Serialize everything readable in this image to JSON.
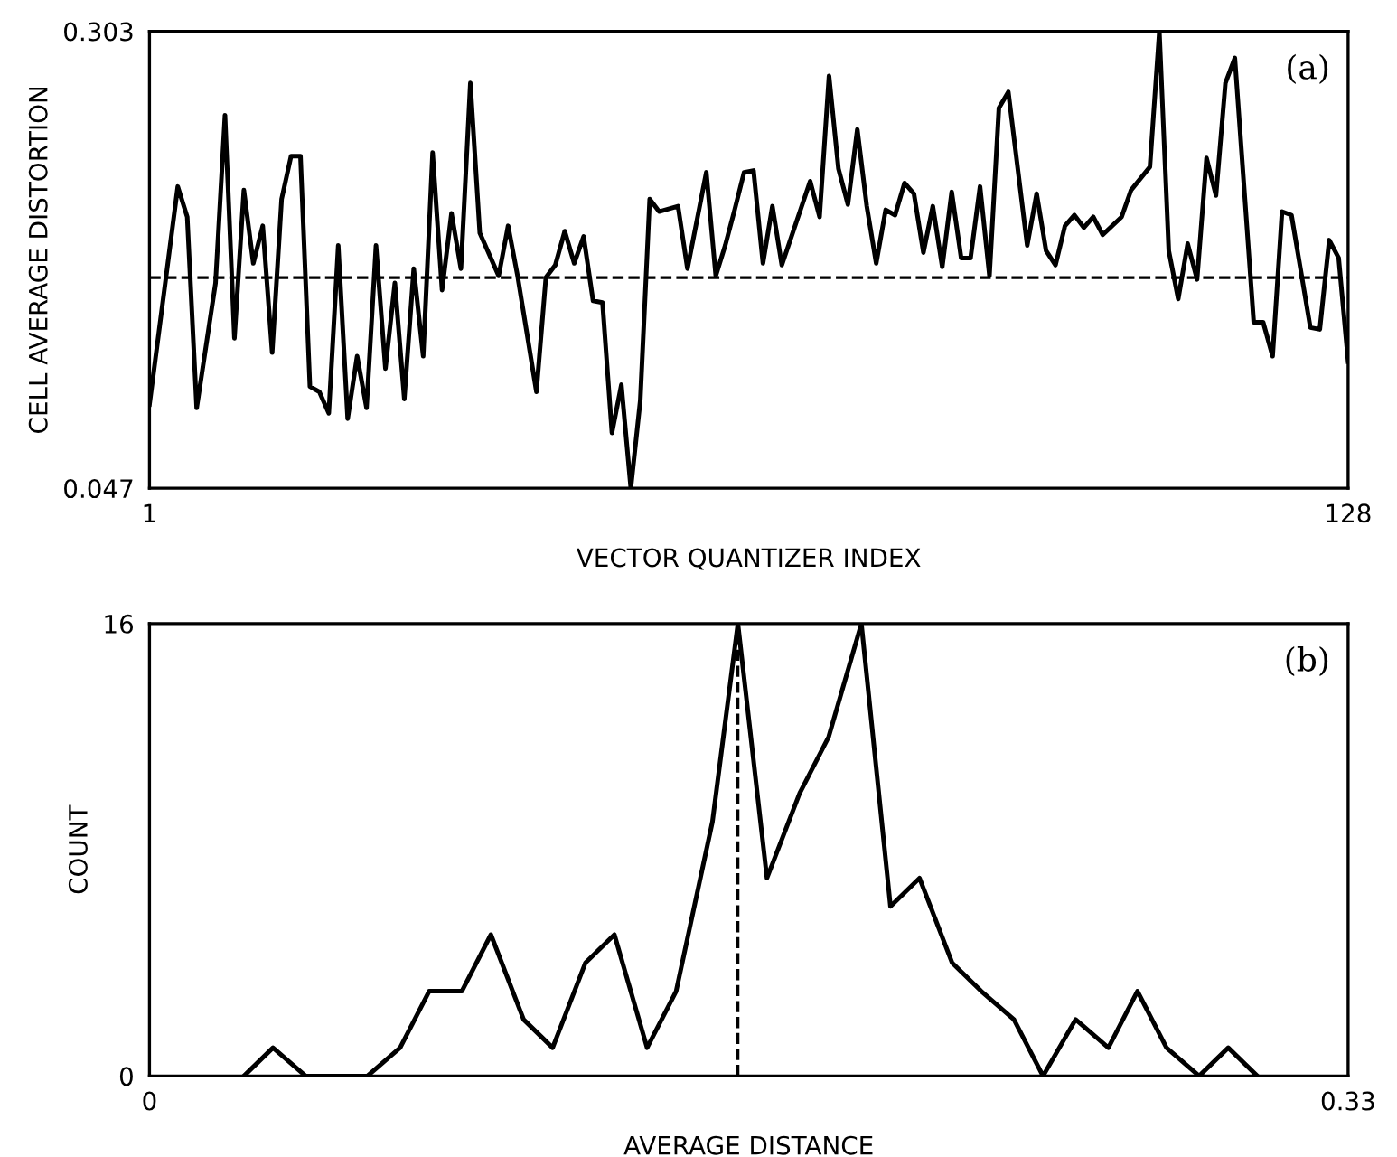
{
  "chart_data": [
    {
      "type": "line",
      "xlabel": "VECTOR QUANTIZER INDEX",
      "ylabel": "CELL AVERAGE DISTORTION",
      "annotations": [
        "(a)"
      ],
      "xlim": [
        1,
        128
      ],
      "ylim": [
        0.047,
        0.303
      ],
      "xticks": [
        1,
        128
      ],
      "yticks": [
        0.047,
        0.303
      ],
      "legend": false,
      "marker": "none",
      "line_style": "solid",
      "series": [
        {
          "color": "#000000",
          "x": [
            1,
            4,
            5,
            6,
            8,
            9,
            10,
            11,
            12,
            13,
            14,
            15,
            16,
            17,
            18,
            19,
            20,
            21,
            22,
            23,
            24,
            25,
            26,
            27,
            28,
            29,
            30,
            31,
            32,
            33,
            34,
            35,
            36,
            38,
            39,
            40,
            42,
            43,
            44,
            45,
            46,
            47,
            48,
            49,
            50,
            51,
            52,
            53,
            54,
            55,
            57,
            58,
            60,
            61,
            62,
            63,
            64,
            65,
            66,
            67,
            68,
            71,
            72,
            73,
            74,
            75,
            76,
            77,
            78,
            79,
            80,
            81,
            82,
            83,
            84,
            85,
            86,
            87,
            88,
            89,
            90,
            91,
            92,
            94,
            95,
            96,
            97,
            98,
            99,
            100,
            101,
            102,
            104,
            105,
            107,
            108,
            109,
            110,
            111,
            112,
            113,
            114,
            115,
            116,
            118,
            119,
            120,
            121,
            122,
            124,
            125,
            126,
            127,
            128
          ],
          "values": [
            0.094,
            0.216,
            0.199,
            0.092,
            0.162,
            0.256,
            0.131,
            0.214,
            0.173,
            0.194,
            0.123,
            0.209,
            0.233,
            0.233,
            0.104,
            0.101,
            0.089,
            0.183,
            0.086,
            0.121,
            0.092,
            0.183,
            0.114,
            0.162,
            0.097,
            0.17,
            0.121,
            0.235,
            0.158,
            0.201,
            0.17,
            0.274,
            0.19,
            0.166,
            0.194,
            0.166,
            0.101,
            0.165,
            0.172,
            0.191,
            0.173,
            0.188,
            0.152,
            0.151,
            0.078,
            0.105,
            0.047,
            0.096,
            0.209,
            0.202,
            0.205,
            0.17,
            0.224,
            0.166,
            0.183,
            0.203,
            0.224,
            0.225,
            0.173,
            0.205,
            0.172,
            0.219,
            0.199,
            0.278,
            0.226,
            0.206,
            0.248,
            0.205,
            0.173,
            0.203,
            0.2,
            0.218,
            0.212,
            0.179,
            0.205,
            0.171,
            0.213,
            0.176,
            0.176,
            0.216,
            0.166,
            0.26,
            0.269,
            0.183,
            0.212,
            0.18,
            0.172,
            0.194,
            0.2,
            0.193,
            0.199,
            0.189,
            0.199,
            0.214,
            0.227,
            0.303,
            0.18,
            0.153,
            0.184,
            0.164,
            0.232,
            0.211,
            0.274,
            0.288,
            0.14,
            0.14,
            0.121,
            0.202,
            0.2,
            0.137,
            0.136,
            0.186,
            0.176,
            0.118
          ]
        }
      ],
      "ref_lines": [
        {
          "axis": "y",
          "value": 0.165,
          "color": "#000000",
          "line_style": "dashed"
        }
      ]
    },
    {
      "type": "line",
      "xlabel": "AVERAGE DISTANCE",
      "ylabel": "COUNT",
      "annotations": [
        "(b)"
      ],
      "xlim": [
        0,
        0.33
      ],
      "ylim": [
        0,
        16
      ],
      "xticks": [
        0,
        0.33
      ],
      "yticks": [
        0,
        16
      ],
      "legend": false,
      "marker": "none",
      "line_style": "solid",
      "series": [
        {
          "color": "#000000",
          "x": [
            0.026,
            0.034,
            0.043,
            0.06,
            0.069,
            0.077,
            0.086,
            0.094,
            0.103,
            0.111,
            0.12,
            0.128,
            0.137,
            0.145,
            0.155,
            0.162,
            0.17,
            0.179,
            0.187,
            0.196,
            0.204,
            0.212,
            0.221,
            0.229,
            0.238,
            0.246,
            0.255,
            0.264,
            0.272,
            0.28,
            0.289,
            0.297,
            0.305
          ],
          "values": [
            0,
            1,
            0,
            0,
            1,
            3,
            3,
            5,
            2,
            1,
            4,
            5,
            1,
            3,
            9,
            16,
            7,
            10,
            12,
            16,
            6,
            7,
            4,
            3,
            2,
            0,
            2,
            1,
            3,
            1,
            0,
            1,
            0
          ]
        }
      ],
      "ref_lines": [
        {
          "axis": "x",
          "value": 0.162,
          "color": "#000000",
          "line_style": "dashed"
        }
      ]
    }
  ]
}
